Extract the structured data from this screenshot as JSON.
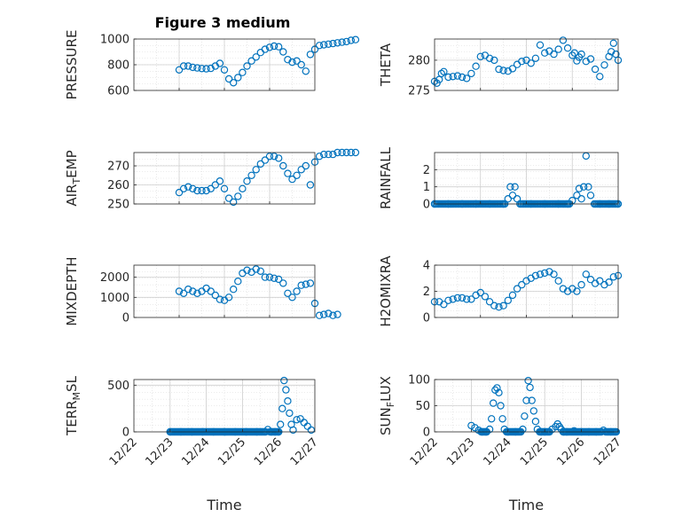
{
  "figure": {
    "title": "Figure 3 medium"
  },
  "colors": {
    "marker": "#0072BD",
    "axis": "#262626",
    "grid": "#d9d9d9"
  },
  "chart_data": [
    {
      "id": "pressure",
      "type": "scatter",
      "ylabel": "PRESSURE",
      "ylim": [
        600,
        1000
      ],
      "yticks": [
        600,
        800,
        1000
      ],
      "yticklabels": [
        "600",
        "800",
        "1000"
      ],
      "xlim": [
        "12/23",
        "12/27"
      ],
      "xticklabels": [],
      "grid": true,
      "x": [
        1.0,
        1.1,
        1.2,
        1.3,
        1.4,
        1.5,
        1.6,
        1.7,
        1.8,
        1.9,
        2.0,
        2.1,
        2.2,
        2.3,
        2.4,
        2.5,
        2.6,
        2.7,
        2.8,
        2.9,
        3.0,
        3.1,
        3.2,
        3.3,
        3.4,
        3.5,
        3.6,
        3.7,
        3.8,
        3.9,
        4.0,
        4.1,
        4.2,
        4.3,
        4.4,
        4.5,
        4.6,
        4.7,
        4.8,
        4.9
      ],
      "y": [
        760,
        790,
        790,
        780,
        775,
        770,
        768,
        772,
        790,
        810,
        760,
        690,
        660,
        700,
        740,
        790,
        830,
        860,
        895,
        920,
        935,
        945,
        940,
        900,
        840,
        820,
        830,
        800,
        750,
        880,
        920,
        950,
        955,
        960,
        965,
        970,
        975,
        980,
        990,
        995
      ]
    },
    {
      "id": "theta",
      "type": "scatter",
      "ylabel": "THETA",
      "ylim": [
        275,
        283.5
      ],
      "yticks": [
        275,
        280
      ],
      "yticklabels": [
        "275",
        "280"
      ],
      "xlim": [
        "12/23",
        "12/27"
      ],
      "xticklabels": [],
      "grid": true,
      "x": [
        0.0,
        0.05,
        0.1,
        0.15,
        0.2,
        0.3,
        0.4,
        0.5,
        0.6,
        0.7,
        0.8,
        0.9,
        1.0,
        1.1,
        1.2,
        1.3,
        1.4,
        1.5,
        1.6,
        1.7,
        1.8,
        1.9,
        2.0,
        2.1,
        2.2,
        2.3,
        2.4,
        2.5,
        2.6,
        2.7,
        2.8,
        2.9,
        3.0,
        3.05,
        3.1,
        3.15,
        3.2,
        3.3,
        3.4,
        3.5,
        3.6,
        3.7,
        3.8,
        3.85,
        3.9,
        3.95,
        4.0
      ],
      "y": [
        276.5,
        276.2,
        276.8,
        277.8,
        278.1,
        277.2,
        277.3,
        277.4,
        277.2,
        277.0,
        277.8,
        279.0,
        280.6,
        280.8,
        280.3,
        280.0,
        278.5,
        278.3,
        278.2,
        278.6,
        279.3,
        279.8,
        280.0,
        279.5,
        280.3,
        282.5,
        281.2,
        281.5,
        281.0,
        281.8,
        283.3,
        282.0,
        280.8,
        281.2,
        279.9,
        280.5,
        281.0,
        279.8,
        280.2,
        278.5,
        277.3,
        279.2,
        280.6,
        281.4,
        282.8,
        281.0,
        280.0
      ]
    },
    {
      "id": "air_temp",
      "type": "scatter",
      "ylabel": "AIR_TEMP",
      "ylabel_sub": "T",
      "ylim": [
        250,
        277
      ],
      "yticks": [
        250,
        260,
        270
      ],
      "yticklabels": [
        "250",
        "260",
        "270"
      ],
      "xlim": [
        "12/23",
        "12/27"
      ],
      "xticklabels": [],
      "grid": true,
      "x": [
        1.0,
        1.1,
        1.2,
        1.3,
        1.4,
        1.5,
        1.6,
        1.7,
        1.8,
        1.9,
        2.0,
        2.1,
        2.2,
        2.3,
        2.4,
        2.5,
        2.6,
        2.7,
        2.8,
        2.9,
        3.0,
        3.1,
        3.2,
        3.3,
        3.4,
        3.5,
        3.6,
        3.7,
        3.8,
        3.9,
        4.0,
        4.1,
        4.2,
        4.3,
        4.4,
        4.5,
        4.6,
        4.7,
        4.8,
        4.9
      ],
      "y": [
        256,
        258,
        259,
        258,
        257,
        257,
        257,
        258,
        260,
        262,
        258,
        253,
        251,
        254,
        258,
        262,
        265,
        268,
        271,
        273,
        275,
        275,
        274,
        270,
        266,
        263,
        265,
        268,
        270,
        260,
        272,
        275,
        276,
        276,
        276,
        277,
        277,
        277,
        277,
        277
      ]
    },
    {
      "id": "rainfall",
      "type": "scatter",
      "ylabel": "RAINFALL",
      "ylim": [
        0,
        3
      ],
      "yticks": [
        0,
        1,
        2
      ],
      "yticklabels": [
        "0",
        "1",
        "2"
      ],
      "xlim": [
        "12/23",
        "12/27"
      ],
      "xticklabels": [],
      "grid": true,
      "x": [
        0.0,
        0.3,
        0.6,
        0.9,
        1.2,
        1.5,
        1.6,
        1.65,
        1.7,
        1.75,
        1.8,
        2.1,
        2.4,
        2.7,
        2.9,
        3.0,
        3.1,
        3.15,
        3.2,
        3.25,
        3.3,
        3.35,
        3.4,
        3.6,
        3.8,
        4.0
      ],
      "y": [
        0,
        0,
        0,
        0,
        0,
        0,
        0.3,
        1.0,
        0.5,
        1.0,
        0.3,
        0,
        0,
        0,
        0,
        0.2,
        0.5,
        0.9,
        0.3,
        1.0,
        2.8,
        1.0,
        0.5,
        0,
        0,
        0
      ]
    },
    {
      "id": "mixdepth",
      "type": "scatter",
      "ylabel": "MIXDEPTH",
      "ylim": [
        0,
        2600
      ],
      "yticks": [
        0,
        1000,
        2000
      ],
      "yticklabels": [
        "0",
        "1000",
        "2000"
      ],
      "xlim": [
        "12/23",
        "12/27"
      ],
      "xticklabels": [],
      "grid": true,
      "x": [
        1.0,
        1.1,
        1.2,
        1.3,
        1.4,
        1.5,
        1.6,
        1.7,
        1.8,
        1.9,
        2.0,
        2.1,
        2.2,
        2.3,
        2.4,
        2.5,
        2.6,
        2.7,
        2.8,
        2.9,
        3.0,
        3.1,
        3.2,
        3.3,
        3.4,
        3.5,
        3.6,
        3.7,
        3.8,
        3.9,
        4.0,
        4.1,
        4.2,
        4.3,
        4.4,
        4.5
      ],
      "y": [
        1300,
        1200,
        1400,
        1300,
        1200,
        1300,
        1450,
        1300,
        1100,
        900,
        850,
        1000,
        1400,
        1800,
        2200,
        2350,
        2250,
        2400,
        2300,
        2000,
        2000,
        1950,
        1900,
        1700,
        1200,
        1000,
        1300,
        1600,
        1650,
        1700,
        700,
        100,
        150,
        200,
        100,
        150
      ]
    },
    {
      "id": "h2omixra",
      "type": "scatter",
      "ylabel": "H2OMIXRA",
      "ylim": [
        0,
        4
      ],
      "yticks": [
        0,
        2,
        4
      ],
      "yticklabels": [
        "0",
        "2",
        "4"
      ],
      "xlim": [
        "12/23",
        "12/27"
      ],
      "xticklabels": [],
      "grid": true,
      "x": [
        0.0,
        0.1,
        0.2,
        0.3,
        0.4,
        0.5,
        0.6,
        0.7,
        0.8,
        0.9,
        1.0,
        1.1,
        1.2,
        1.3,
        1.4,
        1.5,
        1.6,
        1.7,
        1.8,
        1.9,
        2.0,
        2.1,
        2.2,
        2.3,
        2.4,
        2.5,
        2.6,
        2.7,
        2.8,
        2.9,
        3.0,
        3.1,
        3.2,
        3.3,
        3.4,
        3.5,
        3.6,
        3.7,
        3.8,
        3.9,
        4.0
      ],
      "y": [
        1.2,
        1.2,
        1.0,
        1.3,
        1.4,
        1.5,
        1.5,
        1.4,
        1.4,
        1.7,
        1.9,
        1.6,
        1.2,
        0.9,
        0.8,
        0.9,
        1.3,
        1.7,
        2.2,
        2.5,
        2.8,
        3.0,
        3.2,
        3.3,
        3.4,
        3.5,
        3.3,
        2.8,
        2.2,
        2.0,
        2.2,
        2.0,
        2.5,
        3.3,
        2.9,
        2.6,
        2.8,
        2.5,
        2.7,
        3.1,
        3.2
      ]
    },
    {
      "id": "terr_msl",
      "type": "scatter",
      "ylabel": "TERR_MSL",
      "ylabel_sub": "M",
      "ylim": [
        0,
        560
      ],
      "yticks": [
        0,
        500
      ],
      "yticklabels": [
        "0",
        "500"
      ],
      "xlim": [
        "12/22",
        "12/27"
      ],
      "xticklabels": [
        "12/22",
        "12/23",
        "12/24",
        "12/25",
        "12/26",
        "12/27"
      ],
      "xlabel": "Time",
      "grid": true,
      "x": [
        1.0,
        1.3,
        1.6,
        1.9,
        2.2,
        2.5,
        2.8,
        3.1,
        3.4,
        3.7,
        3.8,
        3.9,
        4.0,
        4.05,
        4.1,
        4.15,
        4.2,
        4.25,
        4.3,
        4.35,
        4.4,
        4.5,
        4.6,
        4.7,
        4.8,
        4.9
      ],
      "y": [
        0,
        0,
        0,
        0,
        0,
        0,
        0,
        0,
        0,
        25,
        0,
        0,
        0,
        80,
        250,
        550,
        450,
        330,
        200,
        80,
        20,
        130,
        140,
        100,
        60,
        20
      ]
    },
    {
      "id": "sunflux",
      "type": "scatter",
      "ylabel": "SUN_FLUX",
      "ylabel_sub": "F",
      "ylim": [
        0,
        100
      ],
      "yticks": [
        0,
        50,
        100
      ],
      "yticklabels": [
        "0",
        "50",
        "100"
      ],
      "xlim": [
        "12/22",
        "12/27"
      ],
      "xticklabels": [
        "12/22",
        "12/23",
        "12/24",
        "12/25",
        "12/26",
        "12/27"
      ],
      "xlabel": "Time",
      "grid": true,
      "x": [
        1.0,
        1.1,
        1.2,
        1.3,
        1.4,
        1.5,
        1.55,
        1.6,
        1.65,
        1.7,
        1.75,
        1.8,
        1.85,
        1.9,
        2.0,
        2.2,
        2.4,
        2.45,
        2.5,
        2.55,
        2.6,
        2.65,
        2.7,
        2.75,
        2.8,
        2.9,
        3.0,
        3.2,
        3.3,
        3.35,
        3.4,
        3.45,
        3.5,
        3.6,
        3.8,
        4.0,
        4.2,
        4.4,
        4.6,
        4.8,
        4.95
      ],
      "y": [
        12,
        8,
        3,
        0,
        0,
        5,
        25,
        55,
        80,
        84,
        75,
        50,
        25,
        5,
        0,
        0,
        5,
        30,
        60,
        98,
        85,
        60,
        40,
        20,
        5,
        0,
        0,
        5,
        10,
        15,
        10,
        5,
        0,
        0,
        2,
        0,
        0,
        0,
        3,
        0,
        0
      ]
    }
  ]
}
